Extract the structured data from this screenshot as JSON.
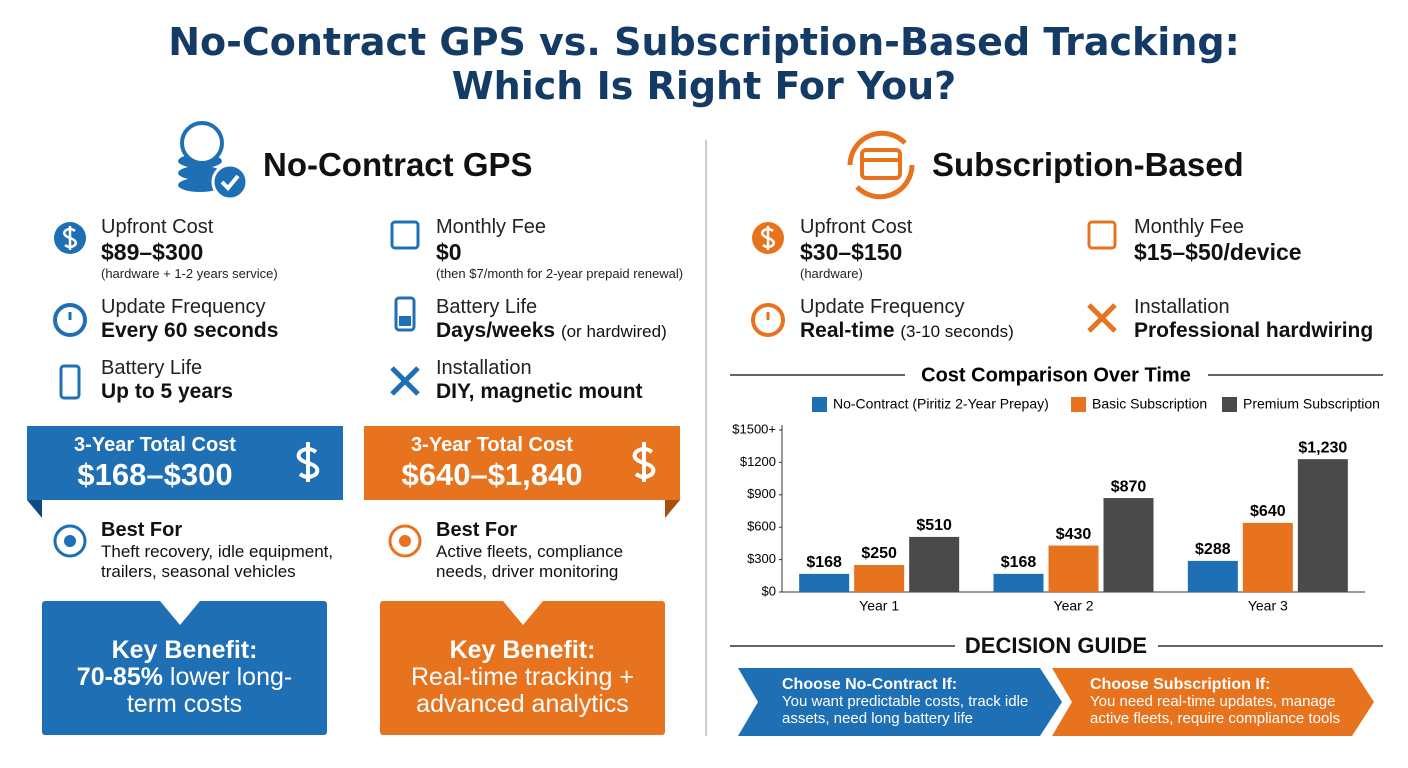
{
  "header": {
    "title": [
      "No-Contract GPS vs. Subscription-Based Tracking:",
      "Which Is Right For You?"
    ]
  },
  "no_contract": {
    "heading": "No-Contract GPS",
    "features": [
      {
        "label": "Upfront Cost",
        "value": "$89–$300",
        "note": "(hardware + 1-2 years service)"
      },
      {
        "label": "Monthly Fee",
        "value": "$0",
        "note": "(then $7/month for 2-year prepaid renewal)"
      },
      {
        "label": "Update Frequency",
        "value": "Every 60 seconds"
      },
      {
        "label": "Battery Life",
        "value": "Days/weeks",
        "note": "(or hardwired)"
      },
      {
        "label": "Battery Life",
        "value": "Up to 5 years"
      },
      {
        "label": "Installation",
        "value": "DIY, magnetic mount"
      }
    ],
    "total": {
      "label": "3-Year Total Cost",
      "value": "$168–$300"
    },
    "best_for": {
      "label": "Best For",
      "text": "Theft recovery, idle equipment, trailers, seasonal vehicles"
    },
    "key_benefit": {
      "label": "Key Benefit:",
      "highlight": "70-85%",
      "text": "lower long-term costs"
    }
  },
  "subscription": {
    "heading": "Subscription-Based",
    "features": [
      {
        "label": "Upfront Cost",
        "value": "$30–$150",
        "note": "(hardware)"
      },
      {
        "label": "Monthly Fee",
        "value": "$15–$50/device"
      },
      {
        "label": "Update Frequency",
        "value": "Real-time",
        "note": "(3-10 seconds)"
      },
      {
        "label": "Installation",
        "value": "Professional hardwiring"
      }
    ],
    "total": {
      "label": "3-Year Total Cost",
      "value": "$640–$1,840"
    },
    "best_for": {
      "label": "Best For",
      "text": "Active fleets, compliance needs, driver monitoring"
    },
    "key_benefit": {
      "label": "Key Benefit:",
      "text": "Real-time tracking + advanced analytics"
    }
  },
  "chart_data": {
    "type": "bar",
    "title": "Cost Comparison Over Time",
    "categories": [
      "Year 1",
      "Year 2",
      "Year 3"
    ],
    "series": [
      {
        "name": "No-Contract (Piritiz 2-Year Prepay)",
        "color": "#1f6fb5",
        "values": [
          168,
          168,
          288
        ],
        "value_labels": [
          "$168",
          "$168",
          "$288"
        ]
      },
      {
        "name": "Basic Subscription",
        "color": "#e8731e",
        "values": [
          250,
          430,
          640
        ],
        "value_labels": [
          "$250",
          "$430",
          "$640"
        ]
      },
      {
        "name": "Premium Subscription",
        "color": "#4a4a4a",
        "values": [
          510,
          870,
          1230
        ],
        "value_labels": [
          "$510",
          "$870",
          "$1,230"
        ]
      }
    ],
    "ylim": [
      0,
      1500
    ],
    "yticks": [
      {
        "value": 0,
        "label": "$0"
      },
      {
        "value": 300,
        "label": "$300"
      },
      {
        "value": 600,
        "label": "$600"
      },
      {
        "value": 900,
        "label": "$900"
      },
      {
        "value": 1200,
        "label": "$1200"
      },
      {
        "value": 1500,
        "label": "$1500+"
      }
    ],
    "grid": false,
    "legend": "top"
  },
  "decision_guide": {
    "title": "DECISION GUIDE",
    "items": [
      {
        "heading": "Choose No-Contract If:",
        "text": "You want predictable costs, track idle assets, need long battery life"
      },
      {
        "heading": "Choose Subscription If:",
        "text": "You need real-time updates, manage active fleets, require compliance tools"
      }
    ]
  }
}
